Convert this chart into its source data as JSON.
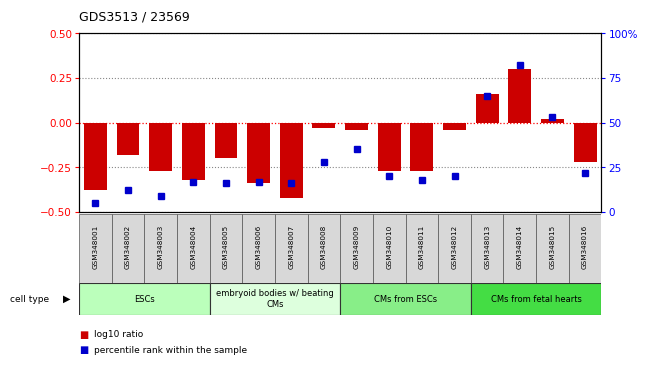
{
  "title": "GDS3513 / 23569",
  "samples": [
    "GSM348001",
    "GSM348002",
    "GSM348003",
    "GSM348004",
    "GSM348005",
    "GSM348006",
    "GSM348007",
    "GSM348008",
    "GSM348009",
    "GSM348010",
    "GSM348011",
    "GSM348012",
    "GSM348013",
    "GSM348014",
    "GSM348015",
    "GSM348016"
  ],
  "log10_ratio": [
    -0.38,
    -0.18,
    -0.27,
    -0.32,
    -0.2,
    -0.34,
    -0.42,
    -0.03,
    -0.04,
    -0.27,
    -0.27,
    -0.04,
    0.16,
    0.3,
    0.02,
    -0.22
  ],
  "percentile_rank": [
    5,
    12,
    9,
    17,
    16,
    17,
    16,
    28,
    35,
    20,
    18,
    20,
    65,
    82,
    53,
    22
  ],
  "cell_type_groups": [
    {
      "label": "ESCs",
      "start": 0,
      "end": 3,
      "color": "#bbffbb"
    },
    {
      "label": "embryoid bodies w/ beating\nCMs",
      "start": 4,
      "end": 7,
      "color": "#ddffdd"
    },
    {
      "label": "CMs from ESCs",
      "start": 8,
      "end": 11,
      "color": "#88ee88"
    },
    {
      "label": "CMs from fetal hearts",
      "start": 12,
      "end": 15,
      "color": "#44dd44"
    }
  ],
  "ylim_left": [
    -0.5,
    0.5
  ],
  "ylim_right": [
    0,
    100
  ],
  "bar_color": "#cc0000",
  "dot_color": "#0000cc",
  "background_color": "#ffffff",
  "grid_color": "#888888",
  "zero_line_color": "#ff0000",
  "yticks_left": [
    -0.5,
    -0.25,
    0,
    0.25,
    0.5
  ],
  "yticks_right": [
    0,
    25,
    50,
    75,
    100
  ]
}
